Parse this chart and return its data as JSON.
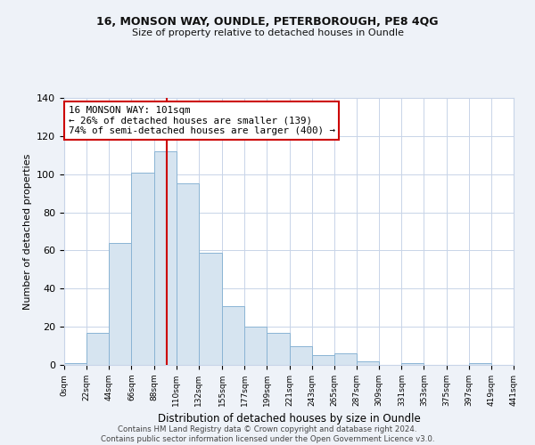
{
  "title1": "16, MONSON WAY, OUNDLE, PETERBOROUGH, PE8 4QG",
  "title2": "Size of property relative to detached houses in Oundle",
  "xlabel": "Distribution of detached houses by size in Oundle",
  "ylabel": "Number of detached properties",
  "bin_edges": [
    0,
    22,
    44,
    66,
    88,
    110,
    132,
    155,
    177,
    199,
    221,
    243,
    265,
    287,
    309,
    331,
    353,
    375,
    397,
    419,
    441
  ],
  "bar_heights": [
    1,
    17,
    64,
    101,
    112,
    95,
    59,
    31,
    20,
    17,
    10,
    5,
    6,
    2,
    0,
    1,
    0,
    0,
    1,
    0
  ],
  "bar_color": "#d6e4f0",
  "bar_edge_color": "#8ab4d4",
  "property_line_x": 101,
  "property_line_color": "#cc0000",
  "annotation_text": "16 MONSON WAY: 101sqm\n← 26% of detached houses are smaller (139)\n74% of semi-detached houses are larger (400) →",
  "annotation_box_color": "#ffffff",
  "annotation_box_edge_color": "#cc0000",
  "tick_labels": [
    "0sqm",
    "22sqm",
    "44sqm",
    "66sqm",
    "88sqm",
    "110sqm",
    "132sqm",
    "155sqm",
    "177sqm",
    "199sqm",
    "221sqm",
    "243sqm",
    "265sqm",
    "287sqm",
    "309sqm",
    "331sqm",
    "353sqm",
    "375sqm",
    "397sqm",
    "419sqm",
    "441sqm"
  ],
  "ylim": [
    0,
    140
  ],
  "yticks": [
    0,
    20,
    40,
    60,
    80,
    100,
    120,
    140
  ],
  "grid_color": "#c8d4e8",
  "plot_bg_color": "#ffffff",
  "fig_bg_color": "#eef2f8",
  "footer_text": "Contains HM Land Registry data © Crown copyright and database right 2024.\nContains public sector information licensed under the Open Government Licence v3.0."
}
